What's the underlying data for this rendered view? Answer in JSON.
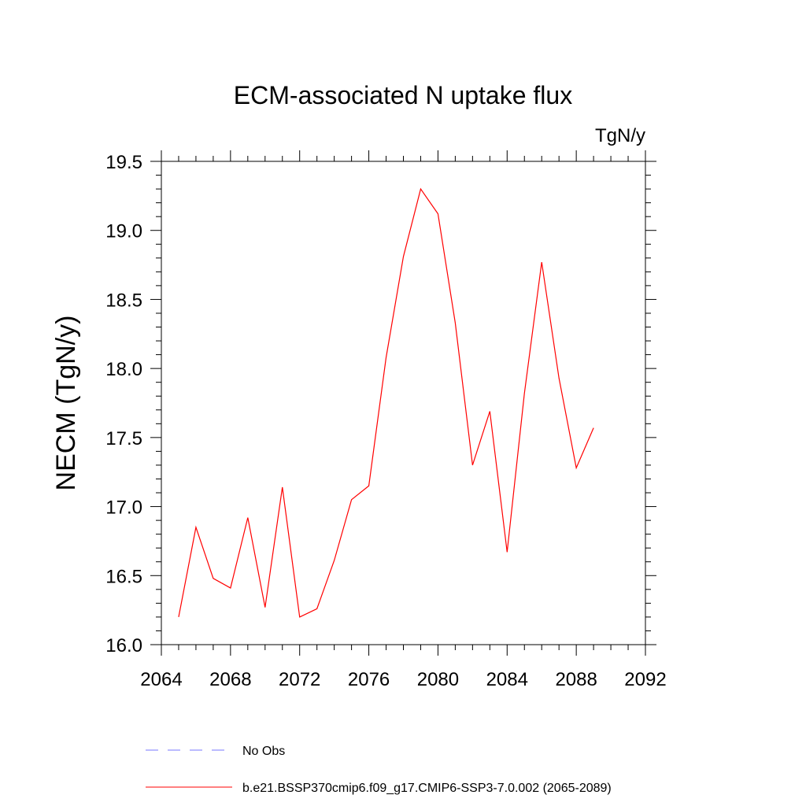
{
  "chart_data": {
    "type": "line",
    "title": "ECM-associated N uptake flux",
    "units_label": "TgN/y",
    "xlabel": "",
    "ylabel": "NECM  (TgN/y)",
    "xlim": [
      2064,
      2092
    ],
    "ylim": [
      16.0,
      19.5
    ],
    "xticks": [
      "2064",
      "2068",
      "2072",
      "2076",
      "2080",
      "2084",
      "2088",
      "2092"
    ],
    "yticks": [
      "16.0",
      "16.5",
      "17.0",
      "17.5",
      "18.0",
      "18.5",
      "19.0",
      "19.5"
    ],
    "grid": false,
    "series": [
      {
        "name": "b.e21.BSSP370cmip6.f09_g17.CMIP6-SSP3-7.0.002 (2065-2089)",
        "color": "#ff0000",
        "x": [
          2065,
          2066,
          2067,
          2068,
          2069,
          2070,
          2071,
          2072,
          2073,
          2074,
          2075,
          2076,
          2077,
          2078,
          2079,
          2080,
          2081,
          2082,
          2083,
          2084,
          2085,
          2086,
          2087,
          2088,
          2089
        ],
        "values": [
          16.2,
          16.85,
          16.48,
          16.41,
          16.92,
          16.27,
          17.14,
          16.2,
          16.26,
          16.61,
          17.05,
          17.15,
          18.08,
          18.81,
          19.3,
          19.12,
          18.33,
          17.3,
          17.69,
          16.67,
          17.82,
          18.77,
          17.93,
          17.28,
          17.57
        ]
      }
    ],
    "legend": [
      {
        "label": "No Obs",
        "color": "#7777ff",
        "style": "dashed"
      },
      {
        "label": "b.e21.BSSP370cmip6.f09_g17.CMIP6-SSP3-7.0.002 (2065-2089)",
        "color": "#ff0000",
        "style": "solid"
      }
    ],
    "legend_placement": "bottom"
  }
}
